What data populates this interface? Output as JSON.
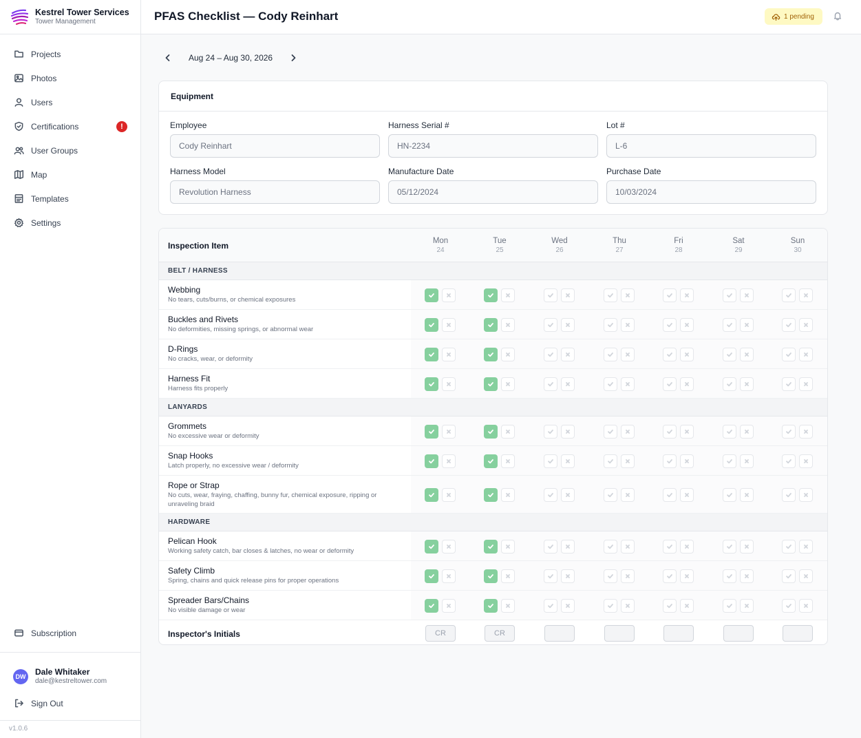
{
  "brand": {
    "name": "Kestrel Tower Services",
    "subtitle": "Tower Management"
  },
  "nav": [
    {
      "label": "Projects",
      "icon": "folder-icon"
    },
    {
      "label": "Photos",
      "icon": "image-icon"
    },
    {
      "label": "Users",
      "icon": "user-icon"
    },
    {
      "label": "Certifications",
      "icon": "shield-check-icon",
      "badge": "!"
    },
    {
      "label": "User Groups",
      "icon": "users-icon"
    },
    {
      "label": "Map",
      "icon": "map-icon"
    },
    {
      "label": "Templates",
      "icon": "layout-icon"
    },
    {
      "label": "Settings",
      "icon": "gear-icon"
    }
  ],
  "subscription": {
    "label": "Subscription"
  },
  "user": {
    "initials": "DW",
    "name": "Dale Whitaker",
    "email": "dale@kestreltower.com"
  },
  "signout": {
    "label": "Sign Out"
  },
  "version": "v1.0.6",
  "header": {
    "title": "PFAS Checklist — Cody Reinhart",
    "pending": "1 pending"
  },
  "week": {
    "label": "Aug 24 – Aug 30, 2026"
  },
  "equipment": {
    "title": "Equipment",
    "fields": [
      {
        "label": "Employee",
        "value": "Cody Reinhart"
      },
      {
        "label": "Harness Serial #",
        "value": "HN-2234"
      },
      {
        "label": "Lot #",
        "value": "L-6"
      },
      {
        "label": "Harness Model",
        "value": "Revolution Harness"
      },
      {
        "label": "Manufacture Date",
        "value": "05/12/2024"
      },
      {
        "label": "Purchase Date",
        "value": "10/03/2024"
      }
    ]
  },
  "inspection": {
    "header_label": "Inspection Item",
    "days": [
      {
        "name": "Mon",
        "num": "24"
      },
      {
        "name": "Tue",
        "num": "25"
      },
      {
        "name": "Wed",
        "num": "26"
      },
      {
        "name": "Thu",
        "num": "27"
      },
      {
        "name": "Fri",
        "num": "28"
      },
      {
        "name": "Sat",
        "num": "29"
      },
      {
        "name": "Sun",
        "num": "30"
      }
    ],
    "sections": [
      {
        "title": "BELT / HARNESS",
        "items": [
          {
            "title": "Webbing",
            "desc": "No tears, cuts/burns, or chemical exposures",
            "checked": [
              true,
              true,
              false,
              false,
              false,
              false,
              false
            ]
          },
          {
            "title": "Buckles and Rivets",
            "desc": "No deformities, missing springs, or abnormal wear",
            "checked": [
              true,
              true,
              false,
              false,
              false,
              false,
              false
            ]
          },
          {
            "title": "D-Rings",
            "desc": "No cracks, wear, or deformity",
            "checked": [
              true,
              true,
              false,
              false,
              false,
              false,
              false
            ]
          },
          {
            "title": "Harness Fit",
            "desc": "Harness fits properly",
            "checked": [
              true,
              true,
              false,
              false,
              false,
              false,
              false
            ]
          }
        ]
      },
      {
        "title": "LANYARDS",
        "items": [
          {
            "title": "Grommets",
            "desc": "No excessive wear or deformity",
            "checked": [
              true,
              true,
              false,
              false,
              false,
              false,
              false
            ]
          },
          {
            "title": "Snap Hooks",
            "desc": "Latch properly, no excessive wear / deformity",
            "checked": [
              true,
              true,
              false,
              false,
              false,
              false,
              false
            ]
          },
          {
            "title": "Rope or Strap",
            "desc": "No cuts, wear, fraying, chaffing, bunny fur, chemical exposure, ripping or unraveling braid",
            "checked": [
              true,
              true,
              false,
              false,
              false,
              false,
              false
            ]
          }
        ]
      },
      {
        "title": "HARDWARE",
        "items": [
          {
            "title": "Pelican Hook",
            "desc": "Working safety catch, bar closes & latches, no wear or deformity",
            "checked": [
              true,
              true,
              false,
              false,
              false,
              false,
              false
            ]
          },
          {
            "title": "Safety Climb",
            "desc": "Spring, chains and quick release pins for proper operations",
            "checked": [
              true,
              true,
              false,
              false,
              false,
              false,
              false
            ]
          },
          {
            "title": "Spreader Bars/Chains",
            "desc": "No visible damage or wear",
            "checked": [
              true,
              true,
              false,
              false,
              false,
              false,
              false
            ]
          }
        ]
      }
    ],
    "initials_label": "Inspector's Initials",
    "initials": [
      "CR",
      "CR",
      "",
      "",
      "",
      "",
      ""
    ]
  },
  "colors": {
    "accent": "#86d09e",
    "badge": "#dc2626",
    "pending_bg": "#fef9c3",
    "avatar": "#6366f1"
  }
}
